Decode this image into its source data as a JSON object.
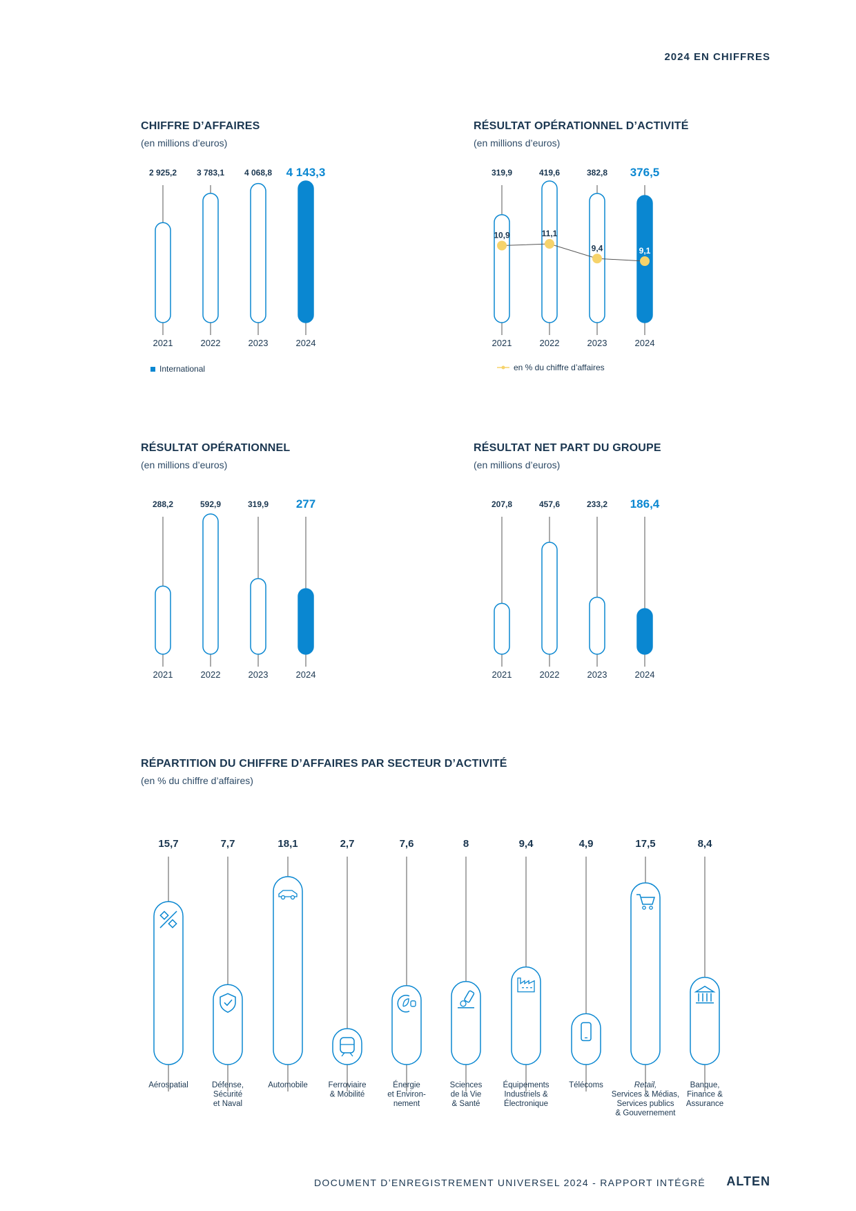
{
  "header": {
    "title": "2024 EN CHIFFRES"
  },
  "footer": {
    "document": "DOCUMENT D’ENREGISTREMENT UNIVERSEL 2024 - RAPPORT INTÉGRÉ",
    "brand": "ALTEN"
  },
  "colors": {
    "navy": "#1a3650",
    "accent": "#0a87d1",
    "outline": "#0a87d1",
    "marker": "#f6d36b",
    "line": "#555555"
  },
  "charts": {
    "ca": {
      "title": "CHIFFRE D’AFFAIRES",
      "subtitle": "(en millions d’euros)",
      "legend": "International"
    },
    "roa": {
      "title": "RÉSULTAT OPÉRATIONNEL D’ACTIVITÉ",
      "subtitle": "(en millions d’euros)",
      "legend": "en % du chiffre d’affaires"
    },
    "ro": {
      "title": "RÉSULTAT OPÉRATIONNEL",
      "subtitle": "(en millions d’euros)"
    },
    "rn": {
      "title": "RÉSULTAT NET PART DU GROUPE",
      "subtitle": "(en millions d’euros)"
    },
    "sectors": {
      "title": "RÉPARTITION DU CHIFFRE D’AFFAIRES PAR SECTEUR D’ACTIVITÉ",
      "subtitle": "(en % du chiffre d’affaires)"
    }
  },
  "chart_data": [
    {
      "id": "ca",
      "type": "bar",
      "title": "CHIFFRE D’AFFAIRES",
      "subtitle": "(en millions d’euros)",
      "categories": [
        "2021",
        "2022",
        "2023",
        "2024"
      ],
      "values": [
        2925.2,
        3783.1,
        4068.8,
        4143.3
      ],
      "labels": [
        "2 925,2",
        "3 783,1",
        "4 068,8",
        "4 143,3"
      ],
      "highlight_index": 3,
      "legend": [
        "International"
      ],
      "legend_position": "bottom-left"
    },
    {
      "id": "roa",
      "type": "bar",
      "title": "RÉSULTAT OPÉRATIONNEL D’ACTIVITÉ",
      "subtitle": "(en millions d’euros)",
      "categories": [
        "2021",
        "2022",
        "2023",
        "2024"
      ],
      "values": [
        319.9,
        419.6,
        382.8,
        376.5
      ],
      "labels": [
        "319,9",
        "419,6",
        "382,8",
        "376,5"
      ],
      "highlight_index": 3,
      "line_series": {
        "name": "en % du chiffre d’affaires",
        "values": [
          10.9,
          11.1,
          9.4,
          9.1
        ],
        "labels": [
          "10,9",
          "11,1",
          "9,4",
          "9,1"
        ]
      },
      "legend": [
        "en % du chiffre d’affaires"
      ],
      "legend_position": "bottom-left"
    },
    {
      "id": "ro",
      "type": "bar",
      "title": "RÉSULTAT OPÉRATIONNEL",
      "subtitle": "(en millions d’euros)",
      "categories": [
        "2021",
        "2022",
        "2023",
        "2024"
      ],
      "values": [
        288.2,
        592.9,
        319.9,
        277
      ],
      "labels": [
        "288,2",
        "592,9",
        "319,9",
        "277"
      ],
      "highlight_index": 3
    },
    {
      "id": "rn",
      "type": "bar",
      "title": "RÉSULTAT NET PART DU GROUPE",
      "subtitle": "(en millions d’euros)",
      "categories": [
        "2021",
        "2022",
        "2023",
        "2024"
      ],
      "values": [
        207.8,
        457.6,
        233.2,
        186.4
      ],
      "labels": [
        "207,8",
        "457,6",
        "233,2",
        "186,4"
      ],
      "highlight_index": 3
    },
    {
      "id": "sectors",
      "type": "bar",
      "title": "RÉPARTITION DU CHIFFRE D’AFFAIRES PAR SECTEUR D’ACTIVITÉ",
      "subtitle": "(en % du chiffre d’affaires)",
      "categories": [
        [
          "Aérospatial"
        ],
        [
          "Défense,",
          "Sécurité",
          "et Naval"
        ],
        [
          "Automobile"
        ],
        [
          "Ferroviaire",
          "& Mobilité"
        ],
        [
          "Énergie",
          "et Environ-",
          "nement"
        ],
        [
          "Sciences",
          "de la Vie",
          "& Santé"
        ],
        [
          "Équipements",
          "Industriels &",
          "Électronique"
        ],
        [
          "Télécoms"
        ],
        [
          "Retail,",
          "Services & Médias,",
          "Services publics",
          "& Gouvernement"
        ],
        [
          "Banque,",
          "Finance &",
          "Assurance"
        ]
      ],
      "values": [
        15.7,
        7.7,
        18.1,
        2.7,
        7.6,
        8,
        9.4,
        4.9,
        17.5,
        8.4
      ],
      "labels": [
        "15,7",
        "7,7",
        "18,1",
        "2,7",
        "7,6",
        "8",
        "9,4",
        "4,9",
        "17,5",
        "8,4"
      ],
      "icons": [
        "satellite-icon",
        "shield-check-icon",
        "car-icon",
        "train-icon",
        "energy-plug-icon",
        "microscope-icon",
        "factory-icon",
        "smartphone-icon",
        "shopping-cart-icon",
        "bank-icon"
      ]
    }
  ]
}
